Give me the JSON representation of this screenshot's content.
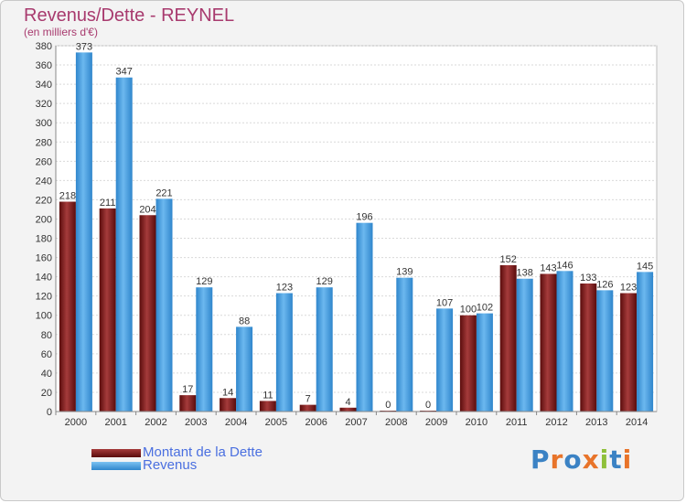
{
  "chart_data": {
    "type": "bar",
    "title": "Revenus/Dette - REYNEL",
    "subtitle": "(en milliers d'€)",
    "categories": [
      "2000",
      "2001",
      "2002",
      "2003",
      "2004",
      "2005",
      "2006",
      "2007",
      "2008",
      "2009",
      "2010",
      "2011",
      "2012",
      "2013",
      "2014"
    ],
    "series": [
      {
        "name": "Montant de la Dette",
        "values": [
          218,
          211,
          204,
          17,
          14,
          11,
          7,
          4,
          0,
          0,
          100,
          152,
          143,
          133,
          123
        ],
        "color": "#7a1c1c"
      },
      {
        "name": "Revenus",
        "values": [
          373,
          347,
          221,
          129,
          88,
          123,
          129,
          196,
          139,
          107,
          102,
          138,
          146,
          126,
          145
        ],
        "color": "#4aa3e6"
      }
    ],
    "ylim": [
      0,
      380
    ],
    "yticks": [
      0,
      20,
      40,
      60,
      80,
      100,
      120,
      140,
      160,
      180,
      200,
      220,
      240,
      260,
      280,
      300,
      320,
      340,
      360,
      380
    ],
    "grid": true,
    "legend_position": "bottom-left"
  },
  "logo": {
    "text": "Proxiti",
    "letters": [
      "P",
      "r",
      "o",
      "x",
      "i",
      "t",
      "i"
    ],
    "colors": [
      "#3b82c4",
      "#e8742a",
      "#3b82c4",
      "#e8742a",
      "#8fc03a",
      "#3b82c4",
      "#e8742a"
    ]
  }
}
